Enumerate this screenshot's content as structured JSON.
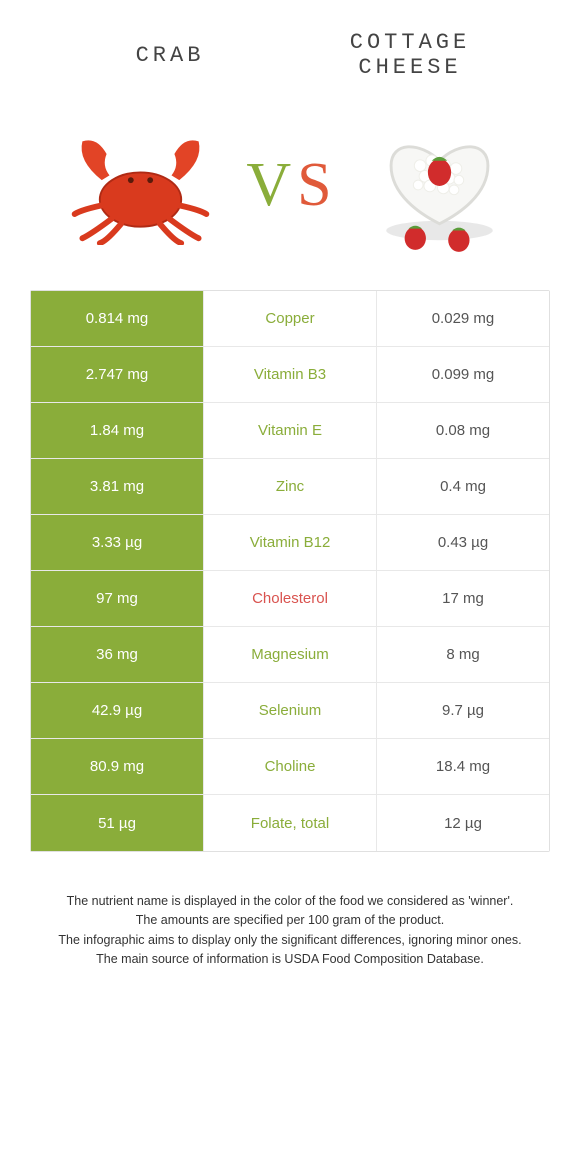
{
  "food_left": {
    "name": "CRAB",
    "color": "#8aad3a"
  },
  "food_right": {
    "name": "COTTAGE CHEESE",
    "color": "#e05a3a"
  },
  "vs_text": {
    "v": "V",
    "s": "S"
  },
  "colors": {
    "left_win_bg": "#8aad3a",
    "right_win_bg": "#e05a3a",
    "lose_bg": "#ffffff",
    "lose_text": "#555555",
    "win_text": "#ffffff",
    "row_border": "#e8e8e8",
    "table_border": "#e0e0e0",
    "nutrient_bad": "#d9534f"
  },
  "rows": [
    {
      "nutrient": "Copper",
      "left": "0.814 mg",
      "right": "0.029 mg",
      "winner": "left",
      "nutrient_color": "#8aad3a"
    },
    {
      "nutrient": "Vitamin B3",
      "left": "2.747 mg",
      "right": "0.099 mg",
      "winner": "left",
      "nutrient_color": "#8aad3a"
    },
    {
      "nutrient": "Vitamin E",
      "left": "1.84 mg",
      "right": "0.08 mg",
      "winner": "left",
      "nutrient_color": "#8aad3a"
    },
    {
      "nutrient": "Zinc",
      "left": "3.81 mg",
      "right": "0.4 mg",
      "winner": "left",
      "nutrient_color": "#8aad3a"
    },
    {
      "nutrient": "Vitamin B12",
      "left": "3.33 µg",
      "right": "0.43 µg",
      "winner": "left",
      "nutrient_color": "#8aad3a"
    },
    {
      "nutrient": "Cholesterol",
      "left": "97 mg",
      "right": "17 mg",
      "winner": "left",
      "nutrient_color": "#d9534f"
    },
    {
      "nutrient": "Magnesium",
      "left": "36 mg",
      "right": "8 mg",
      "winner": "left",
      "nutrient_color": "#8aad3a"
    },
    {
      "nutrient": "Selenium",
      "left": "42.9 µg",
      "right": "9.7 µg",
      "winner": "left",
      "nutrient_color": "#8aad3a"
    },
    {
      "nutrient": "Choline",
      "left": "80.9 mg",
      "right": "18.4 mg",
      "winner": "left",
      "nutrient_color": "#8aad3a"
    },
    {
      "nutrient": "Folate, total",
      "left": "51 µg",
      "right": "12 µg",
      "winner": "left",
      "nutrient_color": "#8aad3a"
    }
  ],
  "footnote": {
    "l1": "The nutrient name is displayed in the color of the food we considered as 'winner'.",
    "l2": "The amounts are specified per 100 gram of the product.",
    "l3": "The infographic aims to display only the significant differences, ignoring minor ones.",
    "l4": "The main source of information is USDA Food Composition Database."
  }
}
